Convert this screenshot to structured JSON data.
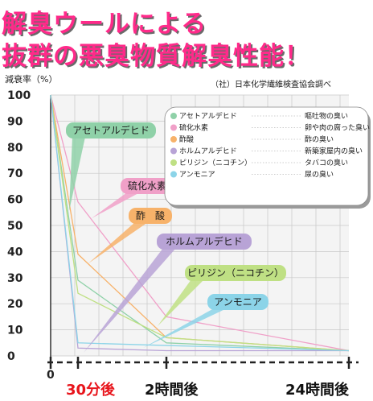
{
  "header": {
    "title_line1": "解臭ウールによる",
    "title_line2": "抜群の悪臭物質解臭性能！"
  },
  "chart_data": {
    "type": "line",
    "ylabel": "減衰率（%）",
    "source": "（社）日本化学繊維検査協会調べ",
    "ylim": [
      0,
      100
    ],
    "y_ticks": [
      "100",
      "90",
      "80",
      "70",
      "60",
      "50",
      "40",
      "30",
      "20",
      "10",
      "0"
    ],
    "x_origin_label": "0",
    "x_labels": [
      "30分後",
      "2時間後",
      "24時間後"
    ],
    "x_label_colors": [
      "#e8141b",
      "#111111",
      "#111111"
    ],
    "grid": true,
    "legend_position": "top-right",
    "series": [
      {
        "name": "アセトアルデヒド",
        "odor": "嘔吐物の臭い",
        "color": "#8fd1a8",
        "callout": "アセトアルデヒド",
        "values": [
          100,
          29,
          5,
          2
        ]
      },
      {
        "name": "硫化水素",
        "odor": "卵や肉の腐った臭い",
        "color": "#f0a0c8",
        "callout": "硫化水素",
        "values": [
          100,
          59,
          15,
          2
        ]
      },
      {
        "name": "酢酸",
        "odor": "酢の臭い",
        "color": "#f7b26a",
        "callout": "酢　酸",
        "values": [
          100,
          39,
          7,
          2
        ]
      },
      {
        "name": "ホルムアルデヒド",
        "odor": "新築家屋内の臭い",
        "color": "#b8a3d6",
        "callout": "ホルムアルデヒド",
        "values": [
          100,
          3,
          2,
          2
        ]
      },
      {
        "name": "ピリジン（ニコチン）",
        "odor": "タバコの臭い",
        "color": "#bfe084",
        "callout": "ピリジン（ニコチン）",
        "values": [
          100,
          24,
          7,
          2
        ]
      },
      {
        "name": "アンモニア",
        "odor": "尿の臭い",
        "color": "#8cd4e8",
        "callout": "アンモニア",
        "values": [
          100,
          5,
          4,
          2
        ]
      }
    ]
  }
}
